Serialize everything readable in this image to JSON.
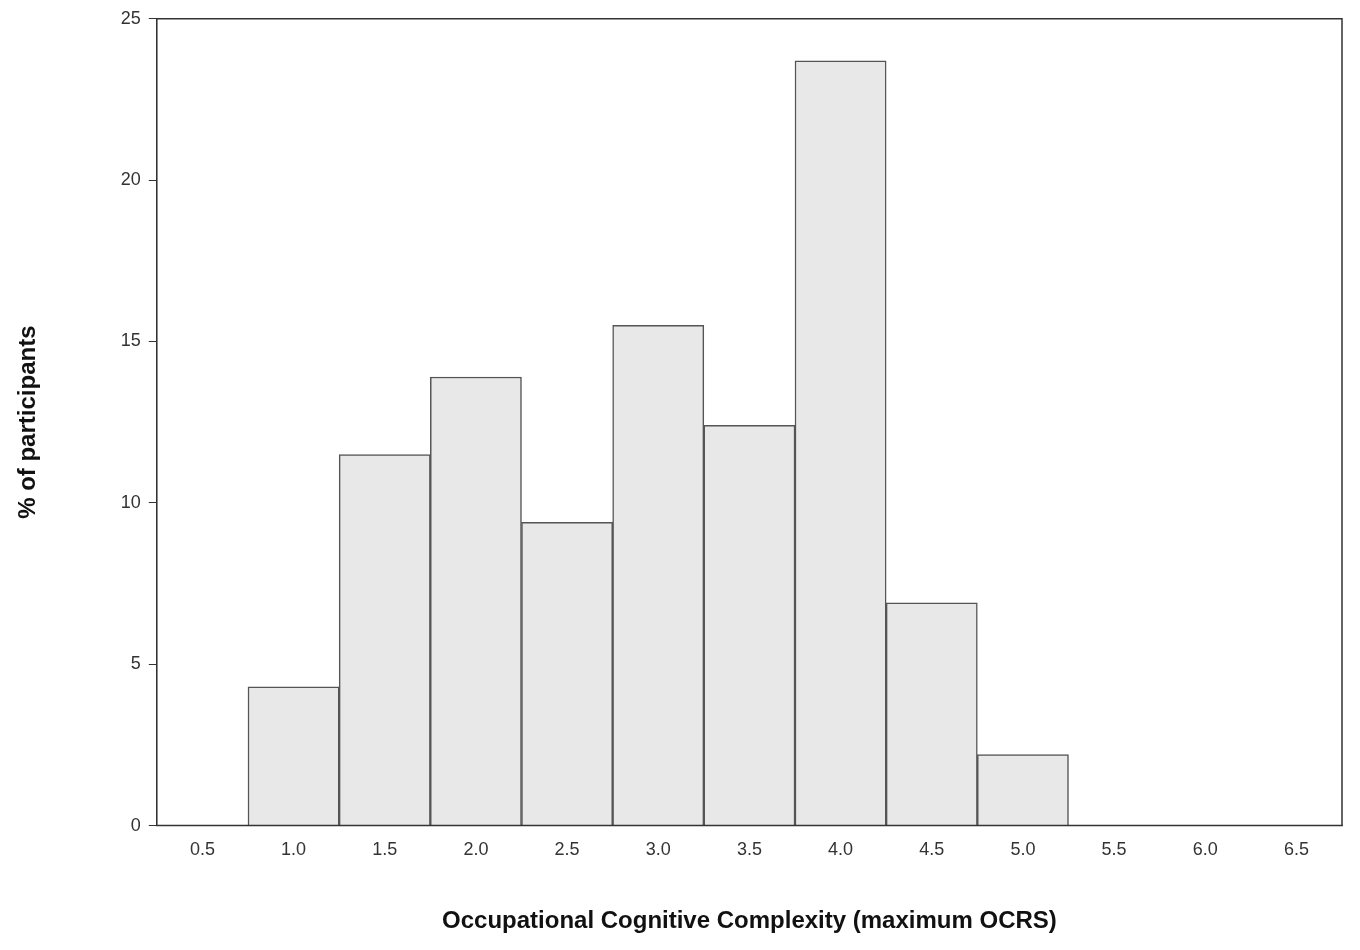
{
  "chart_data": {
    "type": "bar",
    "xlabel": "Occupational Cognitive Complexity (maximum OCRS)",
    "ylabel": "% of participants",
    "categories": [
      "0.5",
      "1.0",
      "1.5",
      "2.0",
      "2.5",
      "3.0",
      "3.5",
      "4.0",
      "4.5",
      "5.0",
      "5.5",
      "6.0",
      "6.5"
    ],
    "values": [
      0,
      4.3,
      11.5,
      13.9,
      9.4,
      15.5,
      12.4,
      23.7,
      6.9,
      2.2,
      0,
      0,
      0
    ],
    "color": "#e8e8e8",
    "ylim": [
      0,
      25
    ],
    "yticks": [
      0,
      5,
      10,
      15,
      20,
      25
    ],
    "grid": false,
    "legend": false
  }
}
